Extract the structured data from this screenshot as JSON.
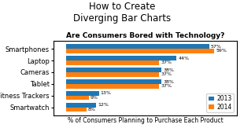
{
  "chart_data": {
    "type": "bar",
    "orientation": "horizontal",
    "title": "How to Create\nDiverging Bar Charts",
    "subtitle": "Are Consumers Bored with Technology?",
    "xlabel": "% of Consumers Planning to Purchase Each Product",
    "categories": [
      "Smartphones",
      "Laptop",
      "Cameras",
      "Tablet",
      "Fitness Trackers",
      "Smartwatch"
    ],
    "series": [
      {
        "name": "2013",
        "values": [
          57,
          44,
          38,
          38,
          13,
          12
        ],
        "value_labels": [
          "57%",
          "44%",
          "38%",
          "38%",
          "13%",
          "12%"
        ]
      },
      {
        "name": "2014",
        "values": [
          59,
          37,
          37,
          37,
          9,
          8
        ],
        "value_labels": [
          "59%",
          "37%",
          "37%",
          "37%",
          "9%",
          "8%"
        ]
      }
    ],
    "xlim": [
      -5,
      68
    ],
    "xticks": [],
    "tick_labels": "y",
    "data_labels": true,
    "legend": "lower right"
  }
}
